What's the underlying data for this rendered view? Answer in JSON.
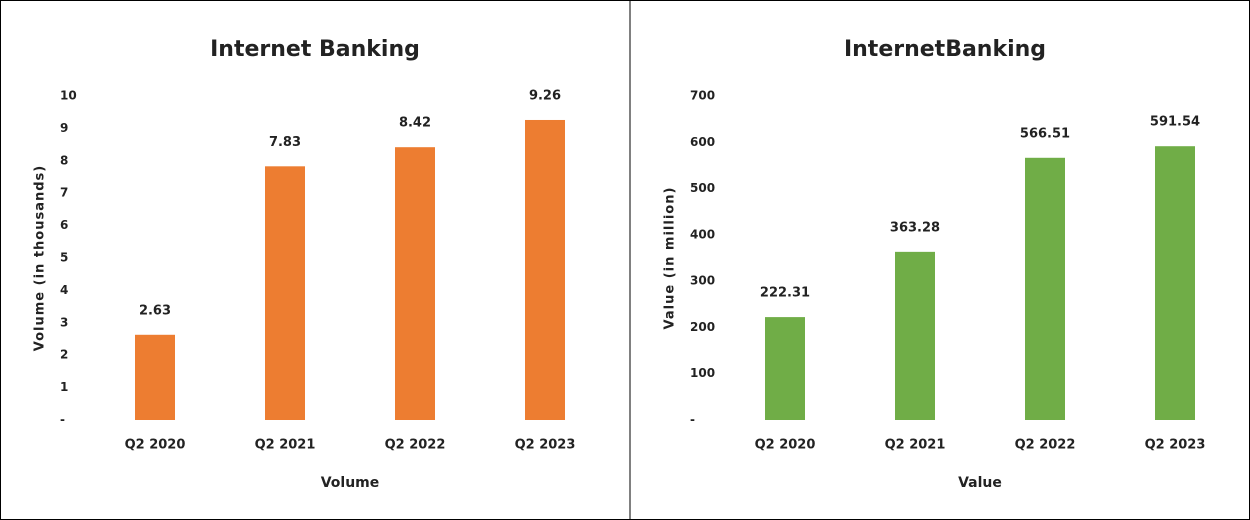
{
  "chart_data": [
    {
      "type": "bar",
      "title": "Internet Banking",
      "ylabel": "Volume (in thousands)",
      "xlabel": "Volume",
      "categories": [
        "Q2 2020",
        "Q2 2021",
        "Q2 2022",
        "Q2 2023"
      ],
      "values": [
        2.63,
        7.83,
        8.42,
        9.26
      ],
      "color": "#ed7d31",
      "ylim": [
        0,
        10
      ],
      "yticks": [
        {
          "value": 0,
          "label": "-"
        },
        1,
        2,
        3,
        4,
        5,
        6,
        7,
        8,
        9,
        10
      ],
      "grid": false
    },
    {
      "type": "bar",
      "title": "InternetBanking",
      "ylabel": "Value (in million)",
      "xlabel": "Value",
      "categories": [
        "Q2 2020",
        "Q2 2021",
        "Q2 2022",
        "Q2 2023"
      ],
      "values": [
        222.31,
        363.28,
        566.51,
        591.54
      ],
      "color": "#70ad47",
      "ylim": [
        0,
        700
      ],
      "yticks": [
        {
          "value": 0,
          "label": "-"
        },
        100,
        200,
        300,
        400,
        500,
        600,
        700
      ],
      "grid": false
    }
  ]
}
